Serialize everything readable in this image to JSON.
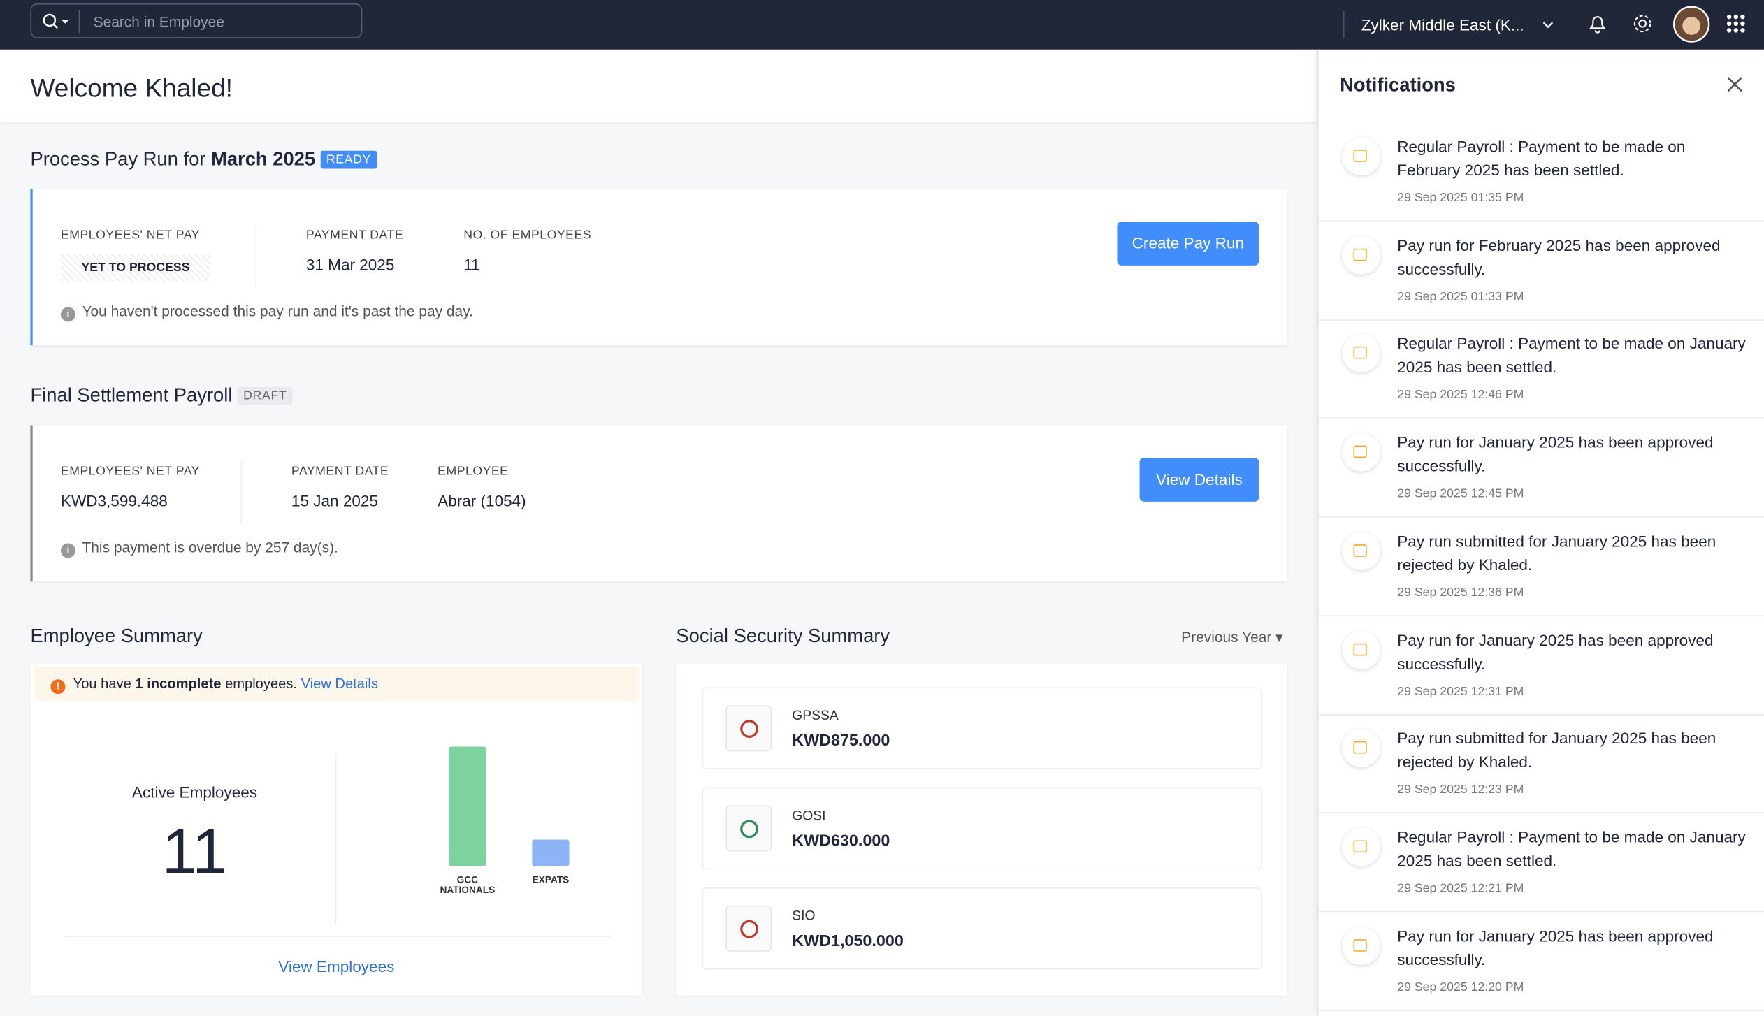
{
  "header": {
    "search_placeholder": "Search in Employee",
    "org": "Zylker Middle East (K..."
  },
  "welcome": "Welcome Khaled!",
  "pay_run": {
    "title_prefix": "Process Pay Run for",
    "period": "March 2025",
    "status": "READY",
    "fields": [
      {
        "label": "EMPLOYEES' NET PAY",
        "value": "YET TO PROCESS"
      },
      {
        "label": "PAYMENT DATE",
        "value": "31 Mar 2025"
      },
      {
        "label": "NO. OF EMPLOYEES",
        "value": "11"
      }
    ],
    "note": "You haven't processed this pay run and it's past the pay day.",
    "button": "Create Pay Run"
  },
  "final_settlement": {
    "title": "Final Settlement Payroll",
    "status": "DRAFT",
    "fields": [
      {
        "label": "EMPLOYEES' NET PAY",
        "value": "KWD3,599.488"
      },
      {
        "label": "PAYMENT DATE",
        "value": "15 Jan 2025"
      },
      {
        "label": "EMPLOYEE",
        "value": "Abrar (1054)"
      }
    ],
    "note": "This payment is overdue by 257 day(s).",
    "button": "View Details"
  },
  "employee_summary": {
    "title": "Employee Summary",
    "alert": {
      "prefix": "You have",
      "count": "1 incomplete",
      "suffix": "employees.",
      "link": "View Details"
    },
    "active_label": "Active Employees",
    "active_count": 11,
    "chart": {
      "type": "bar",
      "categories": [
        "GCC NATIONALS",
        "EXPATS"
      ],
      "values": [
        9,
        2
      ],
      "colors": [
        "#7dd3a0",
        "#8cb4f7"
      ]
    },
    "link": "View Employees"
  },
  "social_security": {
    "title": "Social Security Summary",
    "filter": "Previous Year",
    "items": [
      {
        "name": "GPSSA",
        "amount": "KWD875.000"
      },
      {
        "name": "GOSI",
        "amount": "KWD630.000"
      },
      {
        "name": "SIO",
        "amount": "KWD1,050.000"
      }
    ]
  },
  "notifications": {
    "title": "Notifications",
    "items": [
      {
        "text": "Regular Payroll : Payment to be made on February 2025 has been settled.",
        "time": "29 Sep 2025 01:35 PM"
      },
      {
        "text": "Pay run for February 2025 has been approved successfully.",
        "time": "29 Sep 2025 01:33 PM"
      },
      {
        "text": "Regular Payroll : Payment to be made on January 2025 has been settled.",
        "time": "29 Sep 2025 12:46 PM"
      },
      {
        "text": "Pay run for January 2025 has been approved successfully.",
        "time": "29 Sep 2025 12:45 PM"
      },
      {
        "text": "Pay run submitted for January 2025 has been rejected by Khaled.",
        "time": "29 Sep 2025 12:36 PM"
      },
      {
        "text": "Pay run for January 2025 has been approved successfully.",
        "time": "29 Sep 2025 12:31 PM"
      },
      {
        "text": "Pay run submitted for January 2025 has been rejected by Khaled.",
        "time": "29 Sep 2025 12:23 PM"
      },
      {
        "text": "Regular Payroll : Payment to be made on January 2025 has been settled.",
        "time": "29 Sep 2025 12:21 PM"
      },
      {
        "text": "Pay run for January 2025 has been approved successfully.",
        "time": "29 Sep 2025 12:20 PM"
      }
    ]
  }
}
